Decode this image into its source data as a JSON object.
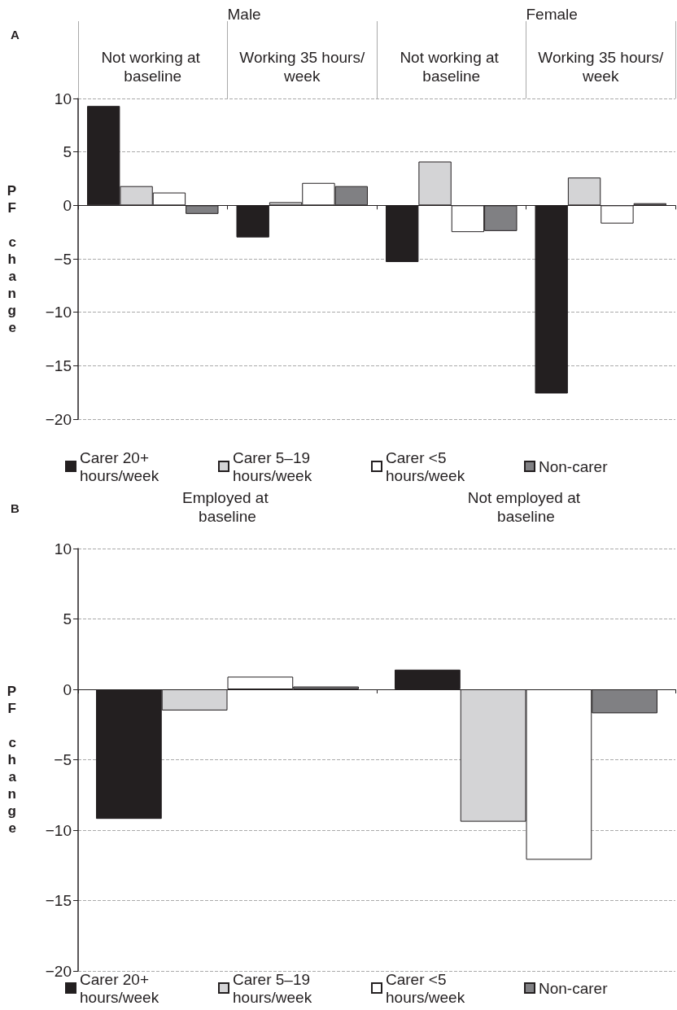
{
  "chart_data": [
    {
      "type": "bar",
      "title": "A",
      "ylabel": "PF change",
      "categories": [
        "Not working at baseline",
        "Working 35 hours/week",
        "Not working at baseline",
        "Working 35 hours/week"
      ],
      "annotations": [
        "Male",
        "Female"
      ],
      "series": [
        {
          "name": "Carer 20+ hours/week",
          "color": "#231f20",
          "values": [
            9.3,
            -3.0,
            -5.3,
            -17.6
          ]
        },
        {
          "name": "Carer 5–19 hours/week",
          "color": "#d4d4d6",
          "values": [
            1.8,
            0.3,
            4.1,
            2.6
          ]
        },
        {
          "name": "Carer <5 hours/week",
          "color": "#ffffff",
          "values": [
            1.2,
            2.1,
            -2.5,
            -1.7
          ]
        },
        {
          "name": "Non-carer",
          "color": "#808083",
          "values": [
            -0.8,
            1.8,
            -2.4,
            0.2
          ]
        }
      ],
      "ylim": [
        -20,
        10
      ],
      "yticks": [
        -20,
        -15,
        -10,
        -5,
        0,
        5,
        10
      ],
      "grid": "y",
      "legend": "bottom"
    },
    {
      "type": "bar",
      "title": "B",
      "ylabel": "PF change",
      "categories": [
        "Employed at baseline",
        "Not employed at baseline"
      ],
      "series": [
        {
          "name": "Carer 20+ hours/week",
          "color": "#231f20",
          "values": [
            -9.2,
            1.4
          ]
        },
        {
          "name": "Carer 5–19 hours/week",
          "color": "#d4d4d6",
          "values": [
            -1.5,
            -9.4
          ]
        },
        {
          "name": "Carer <5 hours/week",
          "color": "#ffffff",
          "values": [
            0.9,
            -12.1
          ]
        },
        {
          "name": "Non-carer",
          "color": "#808083",
          "values": [
            0.2,
            -1.7
          ]
        }
      ],
      "ylim": [
        -20,
        10
      ],
      "yticks": [
        -20,
        -15,
        -10,
        -5,
        0,
        5,
        10
      ],
      "grid": "y",
      "legend": "bottom"
    }
  ]
}
